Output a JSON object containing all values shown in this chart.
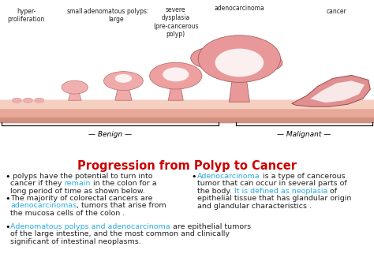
{
  "title": "Progression from Polyp to Cancer",
  "title_color": "#cc0000",
  "title_fontsize": 10.5,
  "bg_color": "#ffffff",
  "diagram_bg": "#f2ede4",
  "wall_color": "#e8a898",
  "wall_inner_color": "#f5cfc0",
  "label_benign": "Benign",
  "label_malignant": "Malignant",
  "bullet_left_1": [
    [
      " polyps have the potential to turn into",
      "#222222"
    ],
    [
      "cancer if they ",
      "#222222"
    ],
    [
      "remain",
      "#29abe2"
    ],
    [
      " in the colon for a",
      "#222222"
    ],
    [
      "long period of time as shown below.",
      "#222222"
    ]
  ],
  "bullet_left_2": [
    [
      "The majority of colorectal cancers are",
      "#222222"
    ],
    [
      "adenocarcinomas",
      "#29abe2"
    ],
    [
      ", tumors that arise from",
      "#222222"
    ],
    [
      "the mucosa cells of the colon .",
      "#222222"
    ]
  ],
  "bullet_right_1": [
    [
      "Adenocarcinoma",
      "#29abe2"
    ],
    [
      " is a type of cancerous",
      "#222222"
    ],
    [
      "tumor that can occur in several parts of",
      "#222222"
    ],
    [
      "the body. ",
      "#222222"
    ],
    [
      "It is defined as neoplasia",
      "#29abe2"
    ],
    [
      " of",
      "#222222"
    ],
    [
      "epithelial tissue that has glandular origin",
      "#222222"
    ],
    [
      "and glandular characteristics .",
      "#222222"
    ]
  ],
  "bullet_bottom_1": [
    [
      "Adenomatous polyps and adenocarcinoma",
      "#29abe2"
    ],
    [
      " are epithelial tumors",
      "#222222"
    ],
    [
      "of the large intestine, and the most common and clinically",
      "#222222"
    ],
    [
      "significant of intestinal neoplasms.",
      "#222222"
    ]
  ]
}
